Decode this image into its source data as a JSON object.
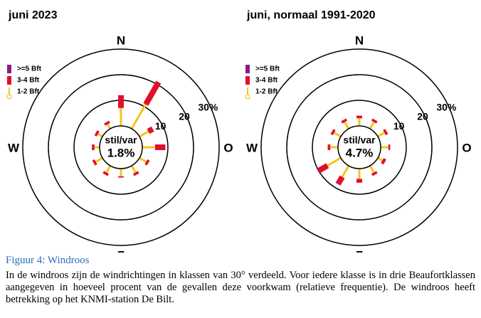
{
  "chart_data": [
    {
      "type": "windrose",
      "title": "juni 2023",
      "categories": [
        "N",
        null,
        null,
        "O",
        null,
        null,
        "Z",
        null,
        null,
        "W",
        null,
        null
      ],
      "series": [
        {
          "name": ">=5 Bft",
          "color": "#8b1a8b",
          "values": [
            0,
            0,
            0,
            0,
            0,
            0,
            0,
            0,
            0,
            0,
            0,
            0
          ]
        },
        {
          "name": "3-4 Bft",
          "color": "#e0102a",
          "values": [
            5,
            10,
            2,
            4,
            1,
            1,
            0.5,
            1,
            1,
            1,
            1,
            1
          ]
        },
        {
          "name": "1-2 Bft",
          "color": "#f5c518",
          "values": [
            7,
            11,
            4,
            5,
            3,
            3,
            3,
            3,
            3,
            2,
            2,
            2
          ]
        }
      ],
      "calm": {
        "label": "stil/var",
        "value": 1.8,
        "value_label": "1.8%"
      },
      "rlim": [
        0,
        30
      ],
      "rticks": [
        10,
        20,
        {
          "value": 30,
          "label": "30%"
        }
      ]
    },
    {
      "type": "windrose",
      "title": "juni, normaal 1991-2020",
      "categories": [
        "N",
        null,
        null,
        "O",
        null,
        null,
        "Z",
        null,
        null,
        "W",
        null,
        null
      ],
      "series": [
        {
          "name": ">=5 Bft",
          "color": "#8b1a8b",
          "values": [
            0,
            0,
            0,
            0.2,
            0.2,
            0,
            0,
            0.3,
            0.3,
            0,
            0,
            0
          ]
        },
        {
          "name": "3-4 Bft",
          "color": "#e0102a",
          "values": [
            1,
            1,
            1,
            0.5,
            1,
            1,
            1.5,
            3,
            4,
            1,
            1,
            1
          ]
        },
        {
          "name": "1-2 Bft",
          "color": "#f5c518",
          "values": [
            3,
            3,
            3,
            3,
            2,
            3,
            4,
            5,
            6,
            3,
            3,
            3
          ]
        }
      ],
      "calm": {
        "label": "stil/var",
        "value": 4.7,
        "value_label": "4.7%"
      },
      "rlim": [
        0,
        30
      ],
      "rticks": [
        10,
        20,
        {
          "value": 30,
          "label": "30%"
        }
      ]
    }
  ],
  "caption": {
    "title": "Figuur 4: Windroos",
    "text": "In de windroos zijn de windrichtingen in klassen van 30° verdeeld. Voor iedere klasse is in drie Beaufortklassen aangegeven in hoeveel procent van de gevallen deze voorkwam (relatieve frequentie). De windroos heeft betrekking op het KNMI-station De Bilt."
  }
}
